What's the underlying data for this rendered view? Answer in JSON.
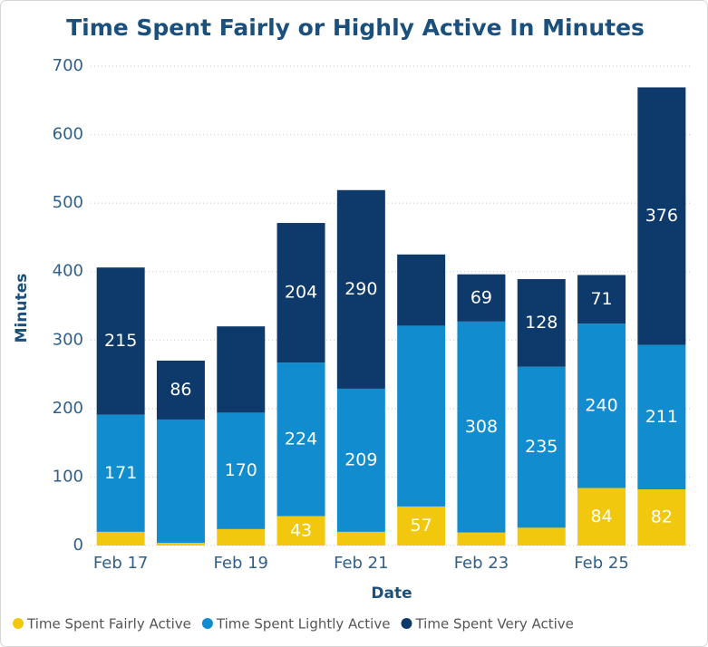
{
  "chart_data": {
    "type": "stacked_bar",
    "title": "Time Spent Fairly or Highly Active In Minutes",
    "x_label": "Date",
    "y_label": "Minutes",
    "categories": [
      "Feb 17",
      null,
      "Feb 19",
      null,
      "Feb 21",
      null,
      "Feb 23",
      null,
      "Feb 25",
      null
    ],
    "series": [
      {
        "name": "Time Spent Fairly Active",
        "color": "#f2c80f",
        "values": [
          20,
          4,
          24,
          43,
          20,
          57,
          19,
          26,
          84,
          82
        ],
        "value_labels": [
          null,
          null,
          null,
          "43",
          null,
          "57",
          null,
          null,
          "84",
          "82"
        ]
      },
      {
        "name": "Time Spent Lightly Active",
        "color": "#118dcf",
        "values": [
          171,
          180,
          170,
          224,
          209,
          264,
          308,
          235,
          240,
          211
        ],
        "value_labels": [
          "171",
          null,
          "170",
          "224",
          "209",
          null,
          "308",
          "235",
          "240",
          "211"
        ]
      },
      {
        "name": "Time Spent Very Active",
        "color": "#0e3a6b",
        "values": [
          215,
          86,
          126,
          204,
          290,
          104,
          69,
          128,
          71,
          376
        ],
        "value_labels": [
          "215",
          "86",
          null,
          "204",
          "290",
          null,
          "69",
          "128",
          "71",
          "376"
        ]
      }
    ],
    "ylim": [
      0,
      700
    ],
    "yticks": [
      0,
      100,
      200,
      300,
      400,
      500,
      600,
      700
    ],
    "grid": true,
    "legend": "bottom"
  }
}
